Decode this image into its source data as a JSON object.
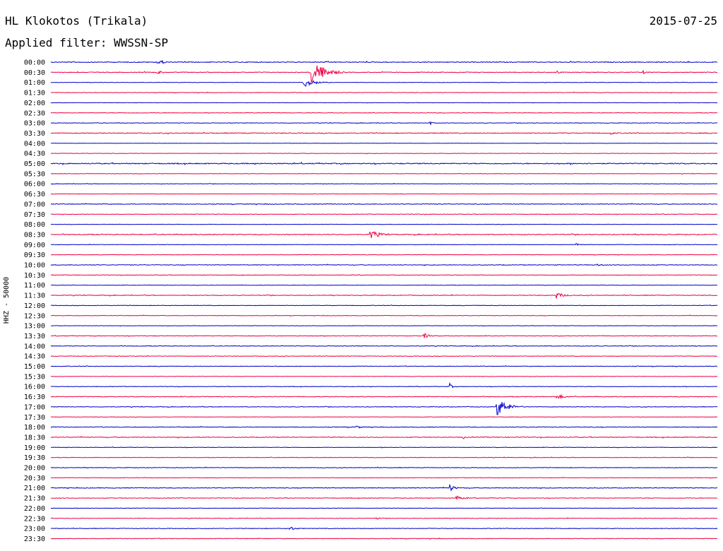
{
  "header": {
    "station": "HL Klokotos (Trikala)",
    "date": "2015-07-25",
    "filter": "Applied filter: WWSSN-SP"
  },
  "chart_data": {
    "type": "line",
    "title": "HL Klokotos (Trikala)",
    "ylabel": "HHZ - 50000",
    "colors": [
      "#0000cc",
      "#ee0044"
    ],
    "rows": [
      {
        "time": "00:00",
        "noise": 1.0,
        "events": [
          [
            0.16,
            4,
            3
          ]
        ]
      },
      {
        "time": "00:30",
        "noise": 0.9,
        "events": [
          [
            0.16,
            3,
            2
          ],
          [
            0.39,
            20,
            5
          ],
          [
            0.76,
            2,
            2
          ],
          [
            0.89,
            2,
            2
          ]
        ]
      },
      {
        "time": "01:00",
        "noise": 0.5,
        "events": [
          [
            0.38,
            7,
            4
          ]
        ]
      },
      {
        "time": "01:30",
        "noise": 0.6,
        "events": []
      },
      {
        "time": "02:00",
        "noise": 0.4,
        "events": []
      },
      {
        "time": "02:30",
        "noise": 0.6,
        "events": []
      },
      {
        "time": "03:00",
        "noise": 0.6,
        "events": [
          [
            0.57,
            2,
            1
          ]
        ]
      },
      {
        "time": "03:30",
        "noise": 1.0,
        "events": [
          [
            0.84,
            2,
            2
          ]
        ]
      },
      {
        "time": "04:00",
        "noise": 0.4,
        "events": []
      },
      {
        "time": "04:30",
        "noise": 0.5,
        "events": []
      },
      {
        "time": "05:00",
        "noise": 1.2,
        "events": []
      },
      {
        "time": "05:30",
        "noise": 0.5,
        "events": []
      },
      {
        "time": "06:00",
        "noise": 0.5,
        "events": []
      },
      {
        "time": "06:30",
        "noise": 0.5,
        "events": []
      },
      {
        "time": "07:00",
        "noise": 0.8,
        "events": []
      },
      {
        "time": "07:30",
        "noise": 0.6,
        "events": []
      },
      {
        "time": "08:00",
        "noise": 0.5,
        "events": []
      },
      {
        "time": "08:30",
        "noise": 1.0,
        "events": [
          [
            0.48,
            6,
            4
          ]
        ]
      },
      {
        "time": "09:00",
        "noise": 0.5,
        "events": [
          [
            0.79,
            2,
            2
          ]
        ]
      },
      {
        "time": "09:30",
        "noise": 0.5,
        "events": []
      },
      {
        "time": "10:00",
        "noise": 0.8,
        "events": [
          [
            0.82,
            2,
            2
          ]
        ]
      },
      {
        "time": "10:30",
        "noise": 0.6,
        "events": []
      },
      {
        "time": "11:00",
        "noise": 0.5,
        "events": []
      },
      {
        "time": "11:30",
        "noise": 0.8,
        "events": [
          [
            0.76,
            4,
            3
          ]
        ]
      },
      {
        "time": "12:00",
        "noise": 0.6,
        "events": []
      },
      {
        "time": "12:30",
        "noise": 0.6,
        "events": []
      },
      {
        "time": "13:00",
        "noise": 0.5,
        "events": []
      },
      {
        "time": "13:30",
        "noise": 0.7,
        "events": [
          [
            0.56,
            4,
            2
          ]
        ]
      },
      {
        "time": "14:00",
        "noise": 0.7,
        "events": []
      },
      {
        "time": "14:30",
        "noise": 0.6,
        "events": []
      },
      {
        "time": "15:00",
        "noise": 0.7,
        "events": []
      },
      {
        "time": "15:30",
        "noise": 0.5,
        "events": []
      },
      {
        "time": "16:00",
        "noise": 0.6,
        "events": [
          [
            0.6,
            3,
            1
          ]
        ]
      },
      {
        "time": "16:30",
        "noise": 0.8,
        "events": [
          [
            0.76,
            4,
            3
          ]
        ]
      },
      {
        "time": "17:00",
        "noise": 0.7,
        "events": [
          [
            0.67,
            13,
            4
          ]
        ]
      },
      {
        "time": "17:30",
        "noise": 0.5,
        "events": []
      },
      {
        "time": "18:00",
        "noise": 0.8,
        "events": [
          [
            0.46,
            2,
            2
          ]
        ]
      },
      {
        "time": "18:30",
        "noise": 0.9,
        "events": [
          [
            0.62,
            2,
            1
          ]
        ]
      },
      {
        "time": "19:00",
        "noise": 0.6,
        "events": []
      },
      {
        "time": "19:30",
        "noise": 0.6,
        "events": []
      },
      {
        "time": "20:00",
        "noise": 0.7,
        "events": []
      },
      {
        "time": "20:30",
        "noise": 0.6,
        "events": []
      },
      {
        "time": "21:00",
        "noise": 0.8,
        "events": [
          [
            0.6,
            4,
            2
          ]
        ]
      },
      {
        "time": "21:30",
        "noise": 0.7,
        "events": [
          [
            0.61,
            3,
            3
          ]
        ]
      },
      {
        "time": "22:00",
        "noise": 0.5,
        "events": []
      },
      {
        "time": "22:30",
        "noise": 0.6,
        "events": [
          [
            0.49,
            2,
            1
          ]
        ]
      },
      {
        "time": "23:00",
        "noise": 0.7,
        "events": [
          [
            0.36,
            3,
            2
          ]
        ]
      },
      {
        "time": "23:30",
        "noise": 0.7,
        "events": []
      }
    ]
  }
}
